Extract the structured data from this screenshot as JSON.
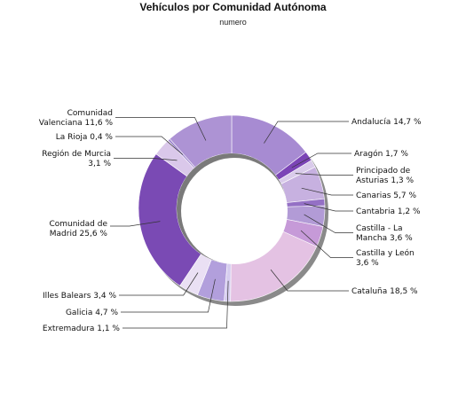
{
  "chart_data": {
    "type": "pie",
    "title": "Vehículos por Comunidad Autónoma",
    "subtitle": "numero",
    "style": "donut",
    "start_angle_deg": 0,
    "direction": "clockwise",
    "slices": [
      {
        "label": [
          "Andalucía 14,7 %"
        ],
        "value": 14.7,
        "color": "#a78bd2"
      },
      {
        "label": [
          "Aragón 1,7 %"
        ],
        "value": 1.7,
        "color": "#7b44b6"
      },
      {
        "label": [
          "Principado de",
          "Asturias 1,3 %"
        ],
        "value": 1.3,
        "color": "#d9cbea"
      },
      {
        "label": [
          "Canarias 5,7 %"
        ],
        "value": 5.7,
        "color": "#c7b1e0"
      },
      {
        "label": [
          "Cantabria 1,2 %"
        ],
        "value": 1.2,
        "color": "#9470c5"
      },
      {
        "label": [
          "Castilla - La",
          "Mancha 3,6 %"
        ],
        "value": 3.6,
        "color": "#b29bd6"
      },
      {
        "label": [
          "Castilla y León",
          "3,6 %"
        ],
        "value": 3.6,
        "color": "#c69ad8"
      },
      {
        "label": [
          "Cataluña 18,5 %"
        ],
        "value": 18.5,
        "color": "#e4c2e3"
      },
      {
        "label": [
          "Extremadura 1,1 %"
        ],
        "value": 1.1,
        "color": "#d6cdef"
      },
      {
        "label": [
          "Galicia 4,7 %"
        ],
        "value": 4.7,
        "color": "#b29fdc"
      },
      {
        "label": [
          "Illes Balears 3,4 %"
        ],
        "value": 3.4,
        "color": "#eae0f4"
      },
      {
        "label": [
          "Comunidad de",
          "Madrid 25,6 %"
        ],
        "value": 25.6,
        "color": "#7a4ab4"
      },
      {
        "label": [
          "Región de Murcia",
          "3,1 %"
        ],
        "value": 3.1,
        "color": "#dac8ea"
      },
      {
        "label": [
          "La Rioja 0,4 %"
        ],
        "value": 0.4,
        "color": "#9f88cf"
      },
      {
        "label": [
          "Comunidad",
          "Valenciana 11,6 %"
        ],
        "value": 11.6,
        "color": "#ad93d4"
      }
    ]
  }
}
